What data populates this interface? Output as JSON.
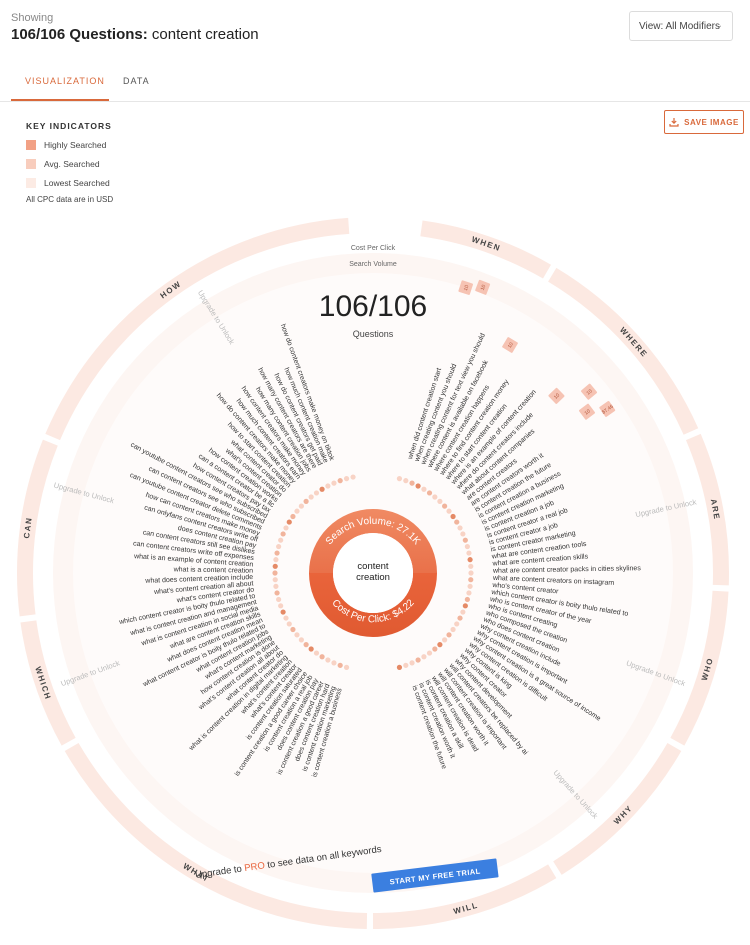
{
  "header": {
    "showing": "Showing",
    "count_bold": "106/106 Questions:",
    "topic": "content creation"
  },
  "view_select": {
    "label": "View: All Modifiers"
  },
  "tabs": [
    {
      "label": "VISUALIZATION",
      "active": true
    },
    {
      "label": "DATA",
      "active": false
    }
  ],
  "save_button": {
    "label": "SAVE IMAGE"
  },
  "key_indicators": {
    "title": "KEY INDICATORS",
    "items": [
      {
        "label": "Highly Searched",
        "color": "#f2a185"
      },
      {
        "label": "Avg. Searched",
        "color": "#f8cdbd"
      },
      {
        "label": "Lowest Searched",
        "color": "#fcebe4"
      }
    ],
    "note": "All CPC data are in USD"
  },
  "viz": {
    "scale_labels": {
      "cpc": "Cost Per Click",
      "volume": "Search Volume"
    },
    "center_count": "106/106",
    "center_sub": "Questions",
    "search_volume": "Search Volume: 27.1K",
    "cost_per_click": "Cost Per Click: $4.22",
    "hub_line1": "content",
    "hub_line2": "creation",
    "upgrade_text": "Upgrade to Unlock",
    "cta_text_pre": "Upgrade to ",
    "cta_text_pro": "PRO",
    "cta_text_post": " to see data on all keywords",
    "cta_button": "START MY FREE TRIAL",
    "modifiers": [
      {
        "label": "WHEN",
        "start": 8,
        "end": 30
      },
      {
        "label": "WHERE",
        "start": 31,
        "end": 66
      },
      {
        "label": "ARE",
        "start": 67,
        "end": 92
      },
      {
        "label": "WHO",
        "start": 93,
        "end": 119
      },
      {
        "label": "WHY",
        "start": 120,
        "end": 148
      },
      {
        "label": "WILL",
        "start": 149,
        "end": 180
      },
      {
        "label": "WHAT",
        "start": 181,
        "end": 240
      },
      {
        "label": "WHICH",
        "start": 241,
        "end": 262
      },
      {
        "label": "CAN",
        "start": 263,
        "end": 292
      },
      {
        "label": "HOW",
        "start": 293,
        "end": 356
      }
    ],
    "badges": [
      {
        "text": "10"
      },
      {
        "text": "10"
      },
      {
        "text": "10"
      },
      {
        "text": "10"
      },
      {
        "text": "10"
      },
      {
        "text": "10"
      },
      {
        "text": "$7.46"
      }
    ],
    "questions_right": [
      "when did content creation start",
      "when creating content you should",
      "when creating content for text view you should",
      "where content is available on facebook",
      "where content creation happens",
      "where to find content creation money",
      "where to start content creation",
      "where is an example of content creation",
      "where do content creators include",
      "what about content companies",
      "are content creators",
      "are content creators worth it",
      "is content creation the future",
      "is content creation a business",
      "is content creation marketing",
      "is content creation a job",
      "is content creator a real job",
      "is content creator a job",
      "is content creator marketing",
      "what are content creation tools",
      "what are content creation skills",
      "what are content creator packs in cities skylines",
      "what are content creators on instagram",
      "who's content creator",
      "which content creator is boity thulo related to",
      "who is content creator of the year",
      "who is content creating",
      "who composed the creation",
      "who does content creation",
      "why content creation include",
      "why content creation is important",
      "why content creation is a great source of income",
      "why content creation is difficult",
      "why content is king",
      "why content creator",
      "why content development",
      "will content creators be replaced by ai",
      "will content creation is important",
      "will content creation worth it",
      "will content creation is dead",
      "is content creation a skill",
      "is content creation worth it",
      "is content creation the future"
    ],
    "questions_left": [
      "how do content creators make money on tiktok",
      "how much content creation make",
      "how do content creators get paid",
      "how many content creators are there",
      "how many content creation jobs",
      "how content creators make money",
      "how much content creators earn",
      "how do content creators make money",
      "how to start content creation",
      "what content creator do",
      "what's content creation",
      "how content creation works",
      "can a content creator be a llc",
      "how content creators pay tax",
      "can youtube content creators see who subscribed",
      "can content creators see who subscribed",
      "can youtube content creator delete comments",
      "how can content creators make money",
      "can onlyfans content creators write off",
      "does content creation pay",
      "can content creators still see dislikes",
      "can content creators write off expenses",
      "what is an example of content creation",
      "what is a content creation",
      "what does content creation include",
      "what's content creation all about",
      "what's content creator do",
      "which content creator is boity thulo related to",
      "what is content creation and management",
      "what is content creation in social media",
      "what are content creation skills",
      "what does content creation mean",
      "what content creator is boity thulo related to",
      "what content creation jobs",
      "what's content marketing",
      "how content creation is done",
      "what's content creation all about",
      "what content creator do",
      "what is content creation in digital marketing",
      "what's content creation",
      "what's content creator",
      "is content creation saturated",
      "is content creation a good career choice",
      "is content creation a real job",
      "does content creation pay",
      "is content creation a good career",
      "does content creation hard",
      "is content creation marketing",
      "is content creation a business"
    ]
  }
}
